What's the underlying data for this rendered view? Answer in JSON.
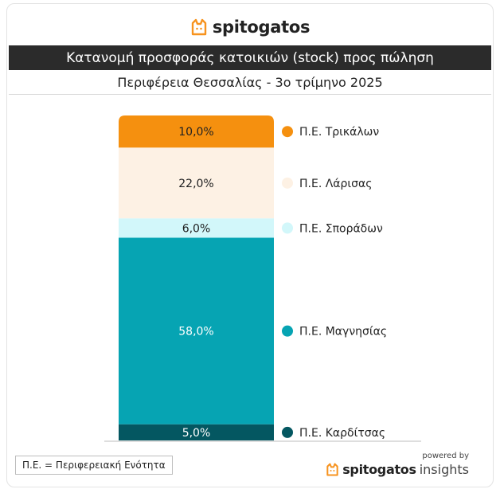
{
  "brand": {
    "name": "spitogatos",
    "icon": "cat-icon",
    "accent": "#f7931e"
  },
  "title": "Κατανομή προσφοράς κατοικιών (stock) προς πώληση",
  "subtitle": "Περιφέρεια Θεσσαλίας - 3ο τρίμηνο 2025",
  "chart_data": {
    "type": "bar",
    "subtype": "stacked-100",
    "categories": [
      "Περιφέρεια Θεσσαλίας"
    ],
    "series": [
      {
        "name": "Π.Ε. Τρικάλων",
        "value": 10.0,
        "label": "10,0%",
        "color": "#f5900f",
        "label_color": "#222222"
      },
      {
        "name": "Π.Ε. Λάρισας",
        "value": 22.0,
        "label": "22,0%",
        "color": "#fdf1e4",
        "label_color": "#222222"
      },
      {
        "name": "Π.Ε. Σποράδων",
        "value": 6.0,
        "label": "6,0%",
        "color": "#d2f7fa",
        "label_color": "#222222"
      },
      {
        "name": "Π.Ε. Μαγνησίας",
        "value": 58.0,
        "label": "58,0%",
        "color": "#06a4b3",
        "label_color": "#ffffff"
      },
      {
        "name": "Π.Ε. Καρδίτσας",
        "value": 5.0,
        "label": "5,0%",
        "color": "#045761",
        "label_color": "#ffffff"
      }
    ],
    "legend": "right",
    "grid": false
  },
  "footer": {
    "note": "Π.Ε. = Περιφερειακή Ενότητα",
    "powered_by": "powered by",
    "brand_bold": "spitogatos",
    "brand_light": "insights"
  }
}
